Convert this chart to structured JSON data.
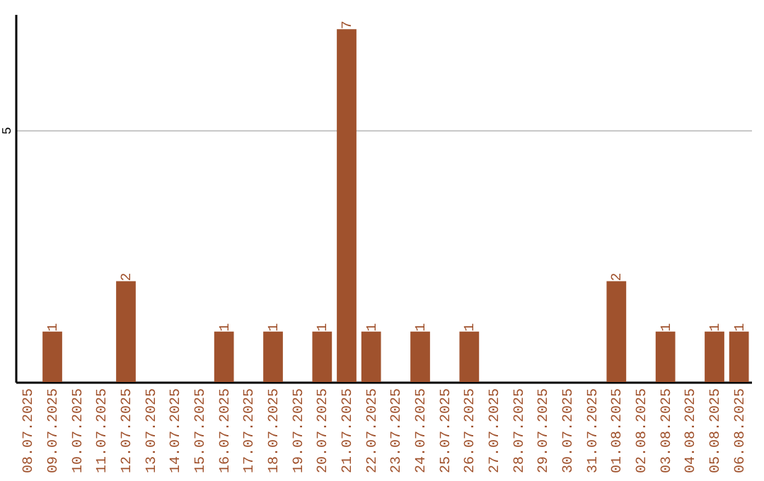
{
  "chart_data": {
    "type": "bar",
    "categories": [
      "08.07.2025",
      "09.07.2025",
      "10.07.2025",
      "11.07.2025",
      "12.07.2025",
      "13.07.2025",
      "14.07.2025",
      "15.07.2025",
      "16.07.2025",
      "17.07.2025",
      "18.07.2025",
      "19.07.2025",
      "20.07.2025",
      "21.07.2025",
      "22.07.2025",
      "23.07.2025",
      "24.07.2025",
      "25.07.2025",
      "26.07.2025",
      "27.07.2025",
      "28.07.2025",
      "29.07.2025",
      "30.07.2025",
      "31.07.2025",
      "01.08.2025",
      "02.08.2025",
      "03.08.2025",
      "04.08.2025",
      "05.08.2025",
      "06.08.2025"
    ],
    "values": [
      null,
      1,
      null,
      null,
      2,
      null,
      null,
      null,
      1,
      null,
      1,
      null,
      1,
      7,
      1,
      null,
      1,
      null,
      1,
      null,
      null,
      null,
      null,
      null,
      2,
      null,
      1,
      null,
      1,
      1
    ],
    "color": "#a0522d",
    "ylim": [
      0,
      7.3
    ],
    "yticks": [
      {
        "value": 0,
        "label": null
      },
      5
    ],
    "grid": "y",
    "data_labels": true
  }
}
